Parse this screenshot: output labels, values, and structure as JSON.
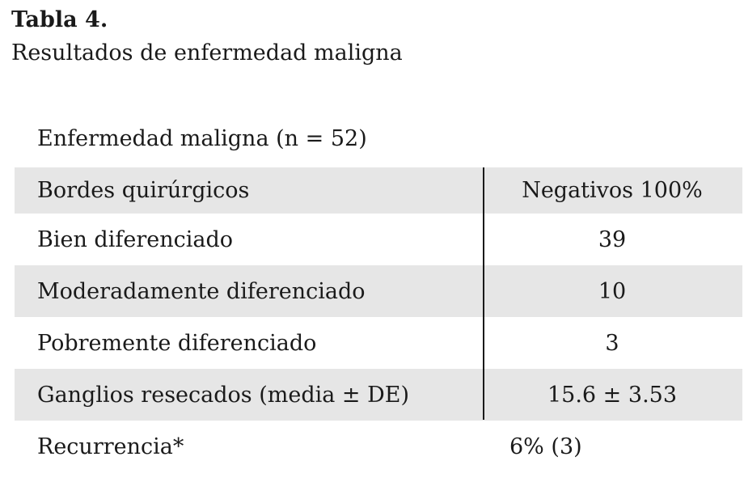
{
  "table": {
    "label": "Tabla 4.",
    "caption": "Resultados de enfermedad maligna",
    "group_header": "Enfermedad maligna (n  =  52)",
    "rows": [
      {
        "label": "Bordes quirúrgicos",
        "value": "Negativos 100%"
      },
      {
        "label": "Bien diferenciado",
        "value": "39"
      },
      {
        "label": "Moderadamente diferenciado",
        "value": "10"
      },
      {
        "label": "Pobremente diferenciado",
        "value": "3"
      },
      {
        "label": "Ganglios resecados (media ± DE)",
        "value": "15.6  ±  3.53"
      },
      {
        "label": "Recurrencia*",
        "value": "6%  (3)"
      }
    ]
  }
}
